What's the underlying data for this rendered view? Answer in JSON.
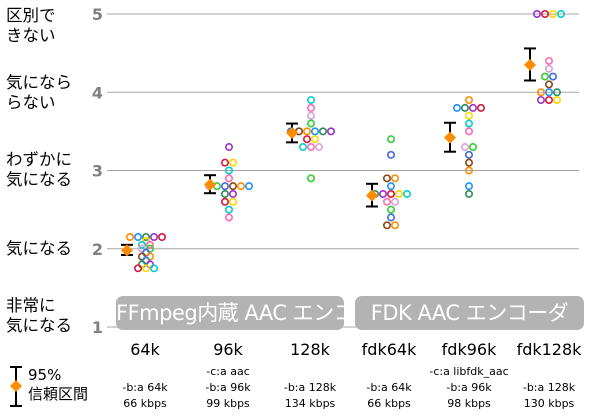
{
  "chart_data": {
    "type": "scatter",
    "title": "",
    "ylim": [
      1,
      5
    ],
    "yticks": [
      1,
      2,
      3,
      4,
      5
    ],
    "y_category_labels": [
      {
        "value": 1,
        "label": "非常に\n気になる"
      },
      {
        "value": 2,
        "label": "気になる"
      },
      {
        "value": 3,
        "label": "わずかに\n気になる"
      },
      {
        "value": 4,
        "label": "気になら\nらない"
      },
      {
        "value": 5,
        "label": "区別で\nきない"
      }
    ],
    "encoder_groups": [
      {
        "label": "FFmpeg内蔵 AAC エンコーダ",
        "categories": [
          "64k",
          "96k",
          "128k"
        ]
      },
      {
        "label": "FDK AAC エンコーダ",
        "categories": [
          "fdk64k",
          "fdk96k",
          "fdk128k"
        ]
      }
    ],
    "categories": [
      "64k",
      "96k",
      "128k",
      "fdk64k",
      "fdk96k",
      "fdk128k"
    ],
    "category_options": [
      [
        "-b:a 64k",
        "66 kbps"
      ],
      [
        "-c:a aac",
        "-b:a 96k",
        "99 kbps"
      ],
      [
        "-b:a 128k",
        "134 kbps"
      ],
      [
        "-b:a 64k",
        "66 kbps"
      ],
      [
        "-c:a libfdk_aac",
        "-b:a 96k",
        "98 kbps"
      ],
      [
        "-b:a 128k",
        "130 kbps"
      ]
    ],
    "mean": [
      1.98,
      2.82,
      3.48,
      2.68,
      3.42,
      4.35
    ],
    "ci_low": [
      1.92,
      2.71,
      3.36,
      2.54,
      3.24,
      4.15
    ],
    "ci_high": [
      2.05,
      2.94,
      3.6,
      2.83,
      3.61,
      4.56
    ],
    "scores": [
      [
        2.15,
        2.15,
        2.15,
        2.15,
        2.15,
        2.1,
        2.05,
        2.05,
        2.0,
        2.0,
        1.95,
        1.9,
        1.9,
        1.85,
        1.8,
        1.8,
        1.75,
        1.75,
        1.75
      ],
      [
        3.3,
        3.1,
        3.1,
        3.0,
        2.9,
        2.8,
        2.8,
        2.8,
        2.8,
        2.8,
        2.8,
        2.7,
        2.7,
        2.6,
        2.6,
        2.5,
        2.4
      ],
      [
        3.9,
        3.8,
        3.7,
        3.6,
        3.5,
        3.5,
        3.5,
        3.5,
        3.5,
        3.5,
        3.4,
        3.4,
        3.3,
        3.3,
        3.3,
        2.9
      ],
      [
        3.4,
        3.2,
        2.9,
        2.9,
        2.8,
        2.7,
        2.7,
        2.7,
        2.7,
        2.7,
        2.6,
        2.6,
        2.5,
        2.4,
        2.3,
        2.3
      ],
      [
        3.9,
        3.8,
        3.8,
        3.8,
        3.8,
        3.7,
        3.6,
        3.5,
        3.3,
        3.3,
        3.2,
        3.1,
        3.0,
        2.8,
        2.7
      ],
      [
        5.0,
        5.0,
        5.0,
        5.0,
        4.4,
        4.3,
        4.2,
        4.2,
        4.1,
        4.0,
        4.0,
        4.0,
        3.9,
        3.9,
        3.9
      ]
    ],
    "legend": [
      {
        "marker": "error-bar",
        "label": ""
      },
      {
        "marker": "diamond",
        "label": "95%\n信頼区間"
      }
    ],
    "colors": {
      "mean_marker": "#ff8c00",
      "grid": "#a6a6a6",
      "axis_text": "#808080",
      "group_box": "#b3b3b3",
      "listeners": [
        "#ff8c00",
        "#1e90ff",
        "#2e8b57",
        "#9932cc",
        "#dc143c",
        "#ffd700",
        "#00ced1",
        "#ff69b4",
        "#dda0dd",
        "#32cd32",
        "#4169e1",
        "#8b4513"
      ]
    }
  }
}
